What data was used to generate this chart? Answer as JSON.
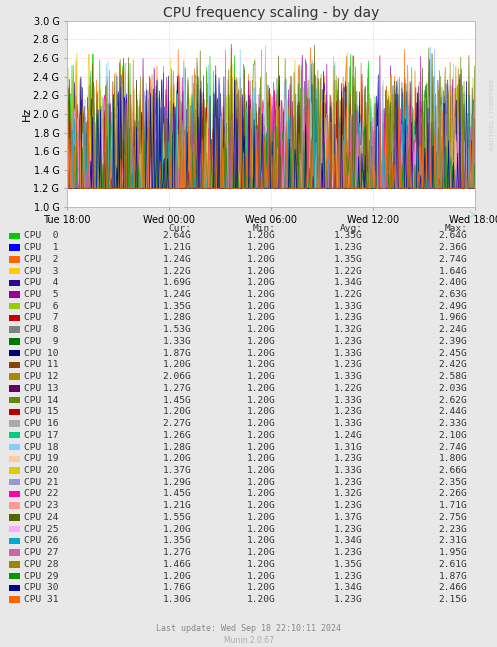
{
  "title": "CPU frequency scaling - by day",
  "ylabel": "Hz",
  "ylim": [
    1.0,
    3.0
  ],
  "yticks": [
    1.0,
    1.2,
    1.4,
    1.6,
    1.8,
    2.0,
    2.2,
    2.4,
    2.6,
    2.8,
    3.0
  ],
  "ytick_labels": [
    "1.0 G",
    "1.2 G",
    "1.4 G",
    "1.6 G",
    "1.8 G",
    "2.0 G",
    "2.2 G",
    "2.4 G",
    "2.6 G",
    "2.8 G",
    "3.0 G"
  ],
  "xtick_labels": [
    "Tue 18:00",
    "Wed 00:00",
    "Wed 06:00",
    "Wed 12:00",
    "Wed 18:00"
  ],
  "background_color": "#e8e8e8",
  "plot_bg_color": "#ffffff",
  "grid_color": "#ff9999",
  "cpus": [
    {
      "name": "CPU  0",
      "color": "#00cc00",
      "cur": 2.64,
      "min": 1.2,
      "avg": 1.35,
      "max": 2.64
    },
    {
      "name": "CPU  1",
      "color": "#0000ff",
      "cur": 1.21,
      "min": 1.2,
      "avg": 1.23,
      "max": 2.36
    },
    {
      "name": "CPU  2",
      "color": "#ff6600",
      "cur": 1.24,
      "min": 1.2,
      "avg": 1.35,
      "max": 2.74
    },
    {
      "name": "CPU  3",
      "color": "#ffcc00",
      "cur": 1.22,
      "min": 1.2,
      "avg": 1.22,
      "max": 1.64
    },
    {
      "name": "CPU  4",
      "color": "#330099",
      "cur": 1.69,
      "min": 1.2,
      "avg": 1.34,
      "max": 2.4
    },
    {
      "name": "CPU  5",
      "color": "#990099",
      "cur": 1.24,
      "min": 1.2,
      "avg": 1.22,
      "max": 2.63
    },
    {
      "name": "CPU  6",
      "color": "#99cc00",
      "cur": 1.35,
      "min": 1.2,
      "avg": 1.33,
      "max": 2.49
    },
    {
      "name": "CPU  7",
      "color": "#cc0000",
      "cur": 1.28,
      "min": 1.2,
      "avg": 1.23,
      "max": 1.96
    },
    {
      "name": "CPU  8",
      "color": "#808080",
      "cur": 1.53,
      "min": 1.2,
      "avg": 1.32,
      "max": 2.24
    },
    {
      "name": "CPU  9",
      "color": "#007700",
      "cur": 1.33,
      "min": 1.2,
      "avg": 1.23,
      "max": 2.39
    },
    {
      "name": "CPU 10",
      "color": "#000077",
      "cur": 1.87,
      "min": 1.2,
      "avg": 1.33,
      "max": 2.45
    },
    {
      "name": "CPU 11",
      "color": "#884400",
      "cur": 1.2,
      "min": 1.2,
      "avg": 1.23,
      "max": 2.42
    },
    {
      "name": "CPU 12",
      "color": "#aa8800",
      "cur": 2.06,
      "min": 1.2,
      "avg": 1.33,
      "max": 2.58
    },
    {
      "name": "CPU 13",
      "color": "#660066",
      "cur": 1.27,
      "min": 1.2,
      "avg": 1.22,
      "max": 2.03
    },
    {
      "name": "CPU 14",
      "color": "#668800",
      "cur": 1.45,
      "min": 1.2,
      "avg": 1.33,
      "max": 2.62
    },
    {
      "name": "CPU 15",
      "color": "#bb0000",
      "cur": 1.2,
      "min": 1.2,
      "avg": 1.23,
      "max": 2.44
    },
    {
      "name": "CPU 16",
      "color": "#aaaaaa",
      "cur": 2.27,
      "min": 1.2,
      "avg": 1.33,
      "max": 2.33
    },
    {
      "name": "CPU 17",
      "color": "#00cc88",
      "cur": 1.26,
      "min": 1.2,
      "avg": 1.24,
      "max": 2.1
    },
    {
      "name": "CPU 18",
      "color": "#88ccff",
      "cur": 1.28,
      "min": 1.2,
      "avg": 1.31,
      "max": 2.74
    },
    {
      "name": "CPU 19",
      "color": "#ffcc99",
      "cur": 1.2,
      "min": 1.2,
      "avg": 1.23,
      "max": 1.8
    },
    {
      "name": "CPU 20",
      "color": "#ddcc00",
      "cur": 1.37,
      "min": 1.2,
      "avg": 1.33,
      "max": 2.66
    },
    {
      "name": "CPU 21",
      "color": "#9999cc",
      "cur": 1.29,
      "min": 1.2,
      "avg": 1.23,
      "max": 2.35
    },
    {
      "name": "CPU 22",
      "color": "#ff00aa",
      "cur": 1.45,
      "min": 1.2,
      "avg": 1.32,
      "max": 2.26
    },
    {
      "name": "CPU 23",
      "color": "#ff9999",
      "cur": 1.21,
      "min": 1.2,
      "avg": 1.23,
      "max": 1.71
    },
    {
      "name": "CPU 24",
      "color": "#556600",
      "cur": 1.55,
      "min": 1.2,
      "avg": 1.37,
      "max": 2.75
    },
    {
      "name": "CPU 25",
      "color": "#ffaaff",
      "cur": 1.2,
      "min": 1.2,
      "avg": 1.23,
      "max": 2.23
    },
    {
      "name": "CPU 26",
      "color": "#00aacc",
      "cur": 1.35,
      "min": 1.2,
      "avg": 1.34,
      "max": 2.31
    },
    {
      "name": "CPU 27",
      "color": "#cc66aa",
      "cur": 1.27,
      "min": 1.2,
      "avg": 1.23,
      "max": 1.95
    },
    {
      "name": "CPU 28",
      "color": "#998800",
      "cur": 1.46,
      "min": 1.2,
      "avg": 1.35,
      "max": 2.61
    },
    {
      "name": "CPU 29",
      "color": "#009900",
      "cur": 1.2,
      "min": 1.2,
      "avg": 1.23,
      "max": 1.87
    },
    {
      "name": "CPU 30",
      "color": "#000099",
      "cur": 1.76,
      "min": 1.2,
      "avg": 1.34,
      "max": 2.46
    },
    {
      "name": "CPU 31",
      "color": "#ff6600",
      "cur": 1.3,
      "min": 1.2,
      "avg": 1.23,
      "max": 2.15
    }
  ],
  "footer": "Last update: Wed Sep 18 22:10:11 2024",
  "munin_version": "Munin 2.0.67",
  "title_fontsize": 10,
  "axis_fontsize": 7,
  "legend_fontsize": 6.8,
  "footer_fontsize": 6
}
